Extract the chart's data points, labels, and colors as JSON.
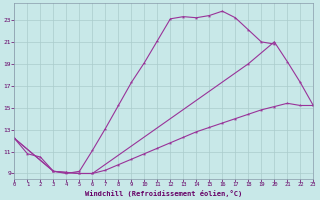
{
  "xlabel": "Windchill (Refroidissement éolien,°C)",
  "bg_color": "#c8e8e8",
  "line_color": "#993399",
  "grid_color": "#aacccc",
  "text_color": "#660066",
  "xlim": [
    0,
    23
  ],
  "ylim": [
    8.5,
    24.5
  ],
  "xticks": [
    0,
    1,
    2,
    3,
    4,
    5,
    6,
    7,
    8,
    9,
    10,
    11,
    12,
    13,
    14,
    15,
    16,
    17,
    18,
    19,
    20,
    21,
    22,
    23
  ],
  "yticks": [
    9,
    11,
    13,
    15,
    17,
    19,
    21,
    23
  ],
  "line1_x": [
    0,
    1,
    2,
    3,
    4,
    5,
    6,
    7,
    8,
    9,
    10,
    11,
    12,
    13,
    14,
    15,
    16,
    17,
    18,
    19,
    20
  ],
  "line1_y": [
    12.2,
    10.8,
    10.5,
    9.2,
    9.0,
    9.2,
    11.1,
    13.1,
    15.2,
    17.3,
    19.1,
    21.1,
    23.1,
    23.3,
    23.2,
    23.4,
    23.8,
    23.2,
    22.1,
    21.0,
    20.8
  ],
  "line2_x": [
    0,
    3,
    4,
    5,
    6,
    7,
    8,
    9,
    10,
    11,
    12,
    13,
    14,
    15,
    16,
    17,
    18,
    19,
    20,
    21,
    22,
    23
  ],
  "line2_y": [
    12.2,
    9.2,
    9.1,
    9.0,
    9.0,
    9.3,
    9.8,
    10.3,
    10.8,
    11.3,
    11.8,
    12.3,
    12.8,
    13.2,
    13.6,
    14.0,
    14.4,
    14.8,
    15.1,
    15.4,
    15.2,
    15.2
  ],
  "line3_x": [
    0,
    3,
    4,
    5,
    6,
    18,
    20,
    21,
    22,
    23
  ],
  "line3_y": [
    12.2,
    9.2,
    9.1,
    9.0,
    9.0,
    19.0,
    21.0,
    19.2,
    17.3,
    15.2
  ]
}
